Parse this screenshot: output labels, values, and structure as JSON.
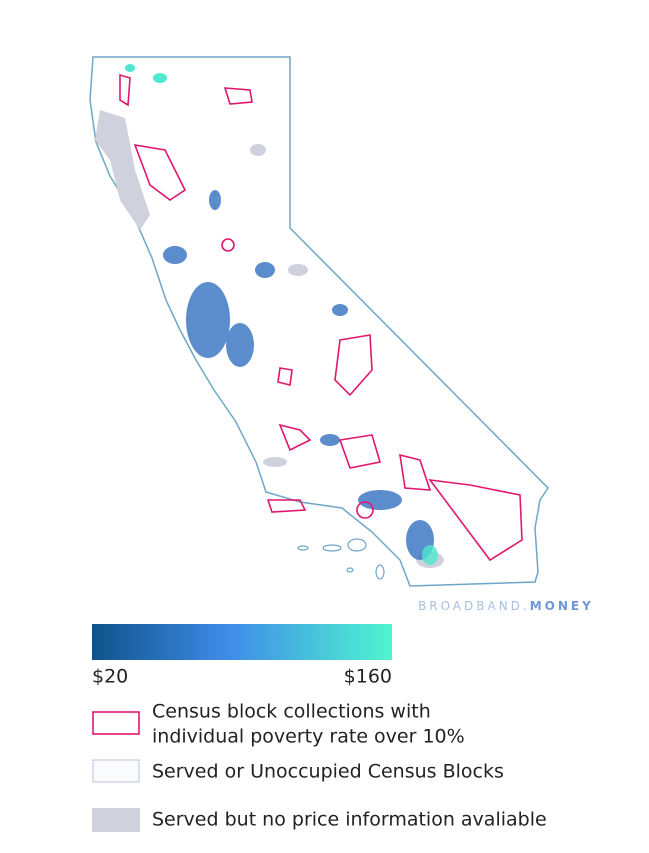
{
  "brand": {
    "first": "BROADBAND.",
    "second": "MONEY"
  },
  "scale": {
    "min_label": "$20",
    "max_label": "$160"
  },
  "legend": [
    {
      "lines": [
        "Census block collections with",
        "individual poverty rate over 10%"
      ]
    },
    {
      "lines": [
        "Served or Unoccupied Census Blocks"
      ]
    },
    {
      "lines": [
        "Served but no price information avaliable"
      ]
    }
  ]
}
